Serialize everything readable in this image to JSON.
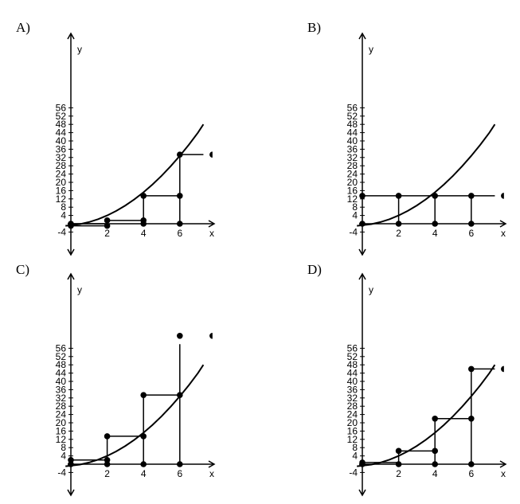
{
  "chart_data": [
    {
      "label": "A)",
      "type": "line",
      "xlabel": "x",
      "ylabel": "y",
      "xlim": [
        -0.3,
        7.8
      ],
      "ylim": [
        -4,
        60
      ],
      "x_ticks": [
        "2",
        "4",
        "6"
      ],
      "y_ticks": [
        "56",
        "52",
        "48",
        "44",
        "40",
        "36",
        "32",
        "28",
        "24",
        "20",
        "16",
        "12",
        "8",
        "4",
        "-4"
      ],
      "curve": [
        [
          -0.3,
          -1
        ],
        [
          0.5,
          -0.2
        ],
        [
          1,
          0.8
        ],
        [
          1.5,
          2.2
        ],
        [
          2,
          4
        ],
        [
          2.5,
          6.2
        ],
        [
          3,
          8.8
        ],
        [
          3.5,
          11.8
        ],
        [
          4,
          15.2
        ],
        [
          4.5,
          19
        ],
        [
          5,
          23.2
        ],
        [
          5.5,
          27.8
        ],
        [
          6,
          32.8
        ],
        [
          6.5,
          38.2
        ],
        [
          7,
          44
        ],
        [
          7.3,
          48
        ]
      ],
      "points": [
        [
          0,
          0
        ],
        [
          0,
          -1
        ],
        [
          2,
          -1
        ],
        [
          2,
          1.6
        ],
        [
          4,
          1.6
        ],
        [
          4,
          0
        ],
        [
          4,
          13.5
        ],
        [
          6,
          13.5
        ],
        [
          6,
          0
        ],
        [
          6,
          33.4
        ]
      ],
      "open_points": [
        [
          7.8,
          33.4
        ]
      ],
      "step_segments": [
        [
          [
            0,
            -1
          ],
          [
            2,
            -1
          ]
        ],
        [
          [
            0,
            0
          ],
          [
            2,
            0
          ]
        ],
        [
          [
            2,
            -1
          ],
          [
            2,
            1.6
          ]
        ],
        [
          [
            2,
            1.6
          ],
          [
            4,
            1.6
          ]
        ],
        [
          [
            4,
            0
          ],
          [
            4,
            13.5
          ]
        ],
        [
          [
            4,
            13.5
          ],
          [
            6,
            13.5
          ]
        ],
        [
          [
            6,
            0
          ],
          [
            6,
            33.4
          ]
        ],
        [
          [
            6,
            33.4
          ],
          [
            7.3,
            33.4
          ]
        ]
      ]
    },
    {
      "label": "B)",
      "type": "line",
      "xlabel": "x",
      "ylabel": "y",
      "xlim": [
        -0.3,
        7.8
      ],
      "ylim": [
        -4,
        60
      ],
      "x_ticks": [
        "2",
        "4",
        "6"
      ],
      "y_ticks": [
        "56",
        "52",
        "48",
        "44",
        "40",
        "36",
        "32",
        "28",
        "24",
        "20",
        "16",
        "12",
        "8",
        "4",
        "-4"
      ],
      "curve": [
        [
          -0.3,
          -1
        ],
        [
          0.5,
          -0.2
        ],
        [
          1,
          0.8
        ],
        [
          1.5,
          2.2
        ],
        [
          2,
          4
        ],
        [
          2.5,
          6.2
        ],
        [
          3,
          8.8
        ],
        [
          3.5,
          11.8
        ],
        [
          4,
          15.2
        ],
        [
          4.5,
          19
        ],
        [
          5,
          23.2
        ],
        [
          5.5,
          27.8
        ],
        [
          6,
          32.8
        ],
        [
          6.5,
          38.2
        ],
        [
          7,
          44
        ],
        [
          7.3,
          48
        ]
      ],
      "points": [
        [
          0,
          0
        ],
        [
          0,
          13.5
        ],
        [
          2,
          13.5
        ],
        [
          2,
          0
        ],
        [
          4,
          13.5
        ],
        [
          4,
          0
        ],
        [
          6,
          13.5
        ],
        [
          6,
          0
        ]
      ],
      "open_points": [
        [
          7.8,
          13.5
        ]
      ],
      "step_segments": [
        [
          [
            0,
            13.5
          ],
          [
            7.3,
            13.5
          ]
        ],
        [
          [
            2,
            0
          ],
          [
            2,
            13.5
          ]
        ],
        [
          [
            4,
            0
          ],
          [
            4,
            13.5
          ]
        ],
        [
          [
            6,
            0
          ],
          [
            6,
            13.5
          ]
        ]
      ]
    },
    {
      "label": "C)",
      "type": "line",
      "xlabel": "x",
      "ylabel": "y",
      "xlim": [
        -0.3,
        7.8
      ],
      "ylim": [
        -4,
        60
      ],
      "x_ticks": [
        "2",
        "4",
        "6"
      ],
      "y_ticks": [
        "56",
        "52",
        "48",
        "44",
        "40",
        "36",
        "32",
        "28",
        "24",
        "20",
        "16",
        "12",
        "8",
        "4",
        "-4"
      ],
      "curve": [
        [
          -0.3,
          -1
        ],
        [
          0.5,
          -0.2
        ],
        [
          1,
          0.8
        ],
        [
          1.5,
          2.2
        ],
        [
          2,
          4
        ],
        [
          2.5,
          6.2
        ],
        [
          3,
          8.8
        ],
        [
          3.5,
          11.8
        ],
        [
          4,
          15.2
        ],
        [
          4.5,
          19
        ],
        [
          5,
          23.2
        ],
        [
          5.5,
          27.8
        ],
        [
          6,
          32.8
        ],
        [
          6.5,
          38.2
        ],
        [
          7,
          44
        ],
        [
          7.3,
          48
        ]
      ],
      "points": [
        [
          0,
          0
        ],
        [
          0,
          2
        ],
        [
          2,
          2
        ],
        [
          2,
          0
        ],
        [
          2,
          13.5
        ],
        [
          4,
          13.5
        ],
        [
          4,
          0
        ],
        [
          4,
          33.4
        ],
        [
          6,
          33.4
        ],
        [
          6,
          0
        ],
        [
          6,
          62
        ]
      ],
      "open_points": [
        [
          7.8,
          62
        ]
      ],
      "step_segments": [
        [
          [
            0,
            2
          ],
          [
            2,
            2
          ]
        ],
        [
          [
            2,
            0
          ],
          [
            2,
            13.5
          ]
        ],
        [
          [
            2,
            13.5
          ],
          [
            4,
            13.5
          ]
        ],
        [
          [
            4,
            0
          ],
          [
            4,
            33.4
          ]
        ],
        [
          [
            4,
            33.4
          ],
          [
            6,
            33.4
          ]
        ],
        [
          [
            6,
            0
          ],
          [
            6,
            58
          ]
        ]
      ]
    },
    {
      "label": "D)",
      "type": "line",
      "xlabel": "x",
      "ylabel": "y",
      "xlim": [
        -0.3,
        7.8
      ],
      "ylim": [
        -4,
        60
      ],
      "x_ticks": [
        "2",
        "4",
        "6"
      ],
      "y_ticks": [
        "56",
        "52",
        "48",
        "44",
        "40",
        "36",
        "32",
        "28",
        "24",
        "20",
        "16",
        "12",
        "8",
        "4",
        "-4"
      ],
      "curve": [
        [
          -0.3,
          -1
        ],
        [
          0.5,
          -0.2
        ],
        [
          1,
          0.8
        ],
        [
          1.5,
          2.2
        ],
        [
          2,
          4
        ],
        [
          2.5,
          6.2
        ],
        [
          3,
          8.8
        ],
        [
          3.5,
          11.8
        ],
        [
          4,
          15.2
        ],
        [
          4.5,
          19
        ],
        [
          5,
          23.2
        ],
        [
          5.5,
          27.8
        ],
        [
          6,
          32.8
        ],
        [
          6.5,
          38.2
        ],
        [
          7,
          44
        ],
        [
          7.3,
          48
        ]
      ],
      "points": [
        [
          0,
          0
        ],
        [
          0,
          0.8
        ],
        [
          2,
          0
        ],
        [
          2,
          6.4
        ],
        [
          4,
          6.4
        ],
        [
          4,
          0
        ],
        [
          4,
          22
        ],
        [
          6,
          22
        ],
        [
          6,
          0
        ],
        [
          6,
          46
        ]
      ],
      "open_points": [
        [
          7.8,
          46
        ]
      ],
      "step_segments": [
        [
          [
            0,
            0.8
          ],
          [
            2,
            0.8
          ]
        ],
        [
          [
            2,
            0
          ],
          [
            2,
            6.4
          ]
        ],
        [
          [
            2,
            6.4
          ],
          [
            4,
            6.4
          ]
        ],
        [
          [
            4,
            0
          ],
          [
            4,
            22
          ]
        ],
        [
          [
            4,
            22
          ],
          [
            6,
            22
          ]
        ],
        [
          [
            6,
            0
          ],
          [
            6,
            46
          ]
        ],
        [
          [
            6,
            46
          ],
          [
            7.3,
            46
          ]
        ]
      ]
    }
  ]
}
